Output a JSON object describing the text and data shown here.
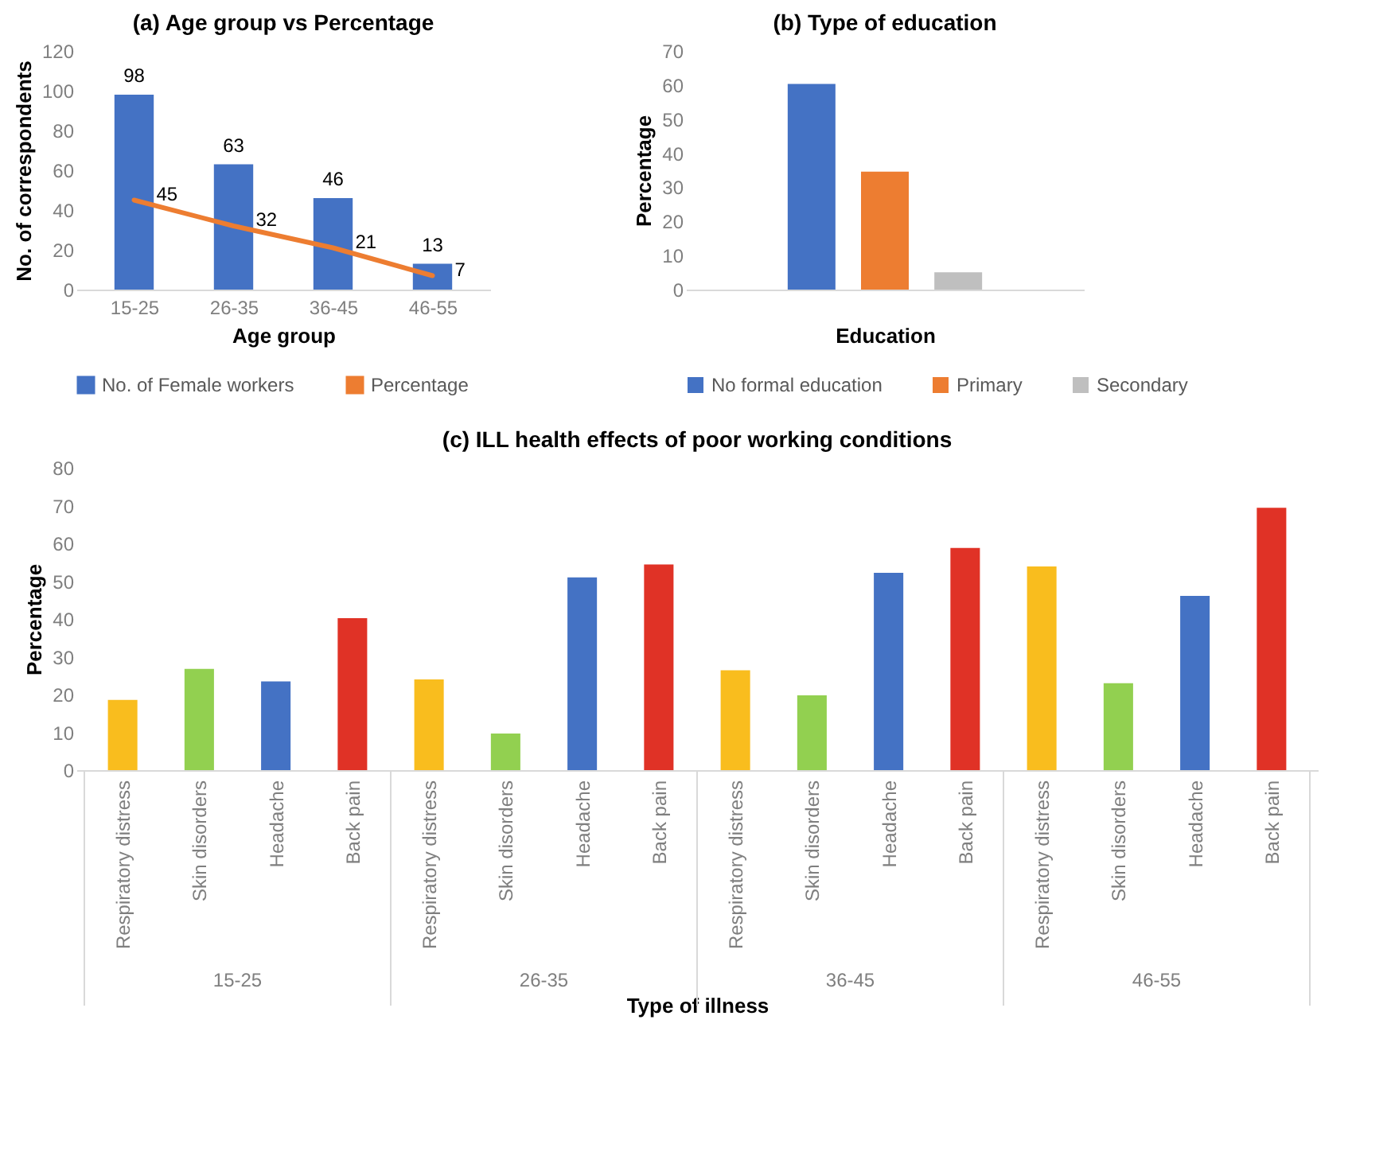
{
  "chart_data": [
    {
      "type": "bar",
      "title": "(a) Age group vs Percentage",
      "xlabel": "Age group",
      "ylabel": "No. of correspondents",
      "categories": [
        "15-25",
        "26-35",
        "36-45",
        "46-55"
      ],
      "series": [
        {
          "name": "No. of Female workers",
          "type": "bar",
          "color": "#4472c4",
          "values": [
            98,
            63,
            46,
            13
          ]
        },
        {
          "name": "Percentage",
          "type": "line",
          "color": "#ed7d31",
          "values": [
            45,
            32,
            21,
            7
          ]
        }
      ],
      "ylim": [
        0,
        120
      ],
      "yticks": [
        0,
        20,
        40,
        60,
        80,
        100,
        120
      ],
      "data_labels": true,
      "legend": "bottom"
    },
    {
      "type": "bar",
      "title": "(b) Type of education",
      "xlabel": "Education",
      "ylabel": "Percentage",
      "categories": [
        null
      ],
      "series": [
        {
          "name": "No formal education",
          "color": "#4472c4",
          "values": [
            60.3
          ]
        },
        {
          "name": "Primary",
          "color": "#ed7d31",
          "values": [
            34.6
          ]
        },
        {
          "name": "Secondary",
          "color": "#bfbfbf",
          "values": [
            5.1
          ]
        }
      ],
      "ylim": [
        0,
        70
      ],
      "yticks": [
        0,
        10,
        20,
        30,
        40,
        50,
        60,
        70
      ],
      "legend": "bottom"
    },
    {
      "type": "bar",
      "title": "(c) ILL health effects of poor working conditions",
      "xlabel": "Type of illness",
      "ylabel": "Percentage",
      "categories": [
        "Respiratory distress",
        "Skin disorders",
        "Headache",
        "Back pain",
        "Respiratory distress",
        "Skin disorders",
        "Headache",
        "Back pain",
        "Respiratory distress",
        "Skin disorders",
        "Headache",
        "Back pain",
        "Respiratory distress",
        "Skin disorders",
        "Headache",
        "Back pain"
      ],
      "values": [
        18.6,
        26.8,
        23.5,
        40.2,
        24,
        9.7,
        51,
        54.4,
        26.4,
        19.8,
        52.2,
        58.8,
        53.9,
        23,
        46.1,
        69.4
      ],
      "colors": [
        "#f9bd1e",
        "#92d050",
        "#4472c4",
        "#e03226",
        "#f9bd1e",
        "#92d050",
        "#4472c4",
        "#e03226",
        "#f9bd1e",
        "#92d050",
        "#4472c4",
        "#e03226",
        "#f9bd1e",
        "#92d050",
        "#4472c4",
        "#e03226"
      ],
      "annotations": [
        "15-25",
        "26-35",
        "36-45",
        "46-55"
      ],
      "ylim": [
        0,
        80
      ],
      "yticks": [
        0,
        10,
        20,
        30,
        40,
        50,
        60,
        70,
        80
      ]
    }
  ]
}
